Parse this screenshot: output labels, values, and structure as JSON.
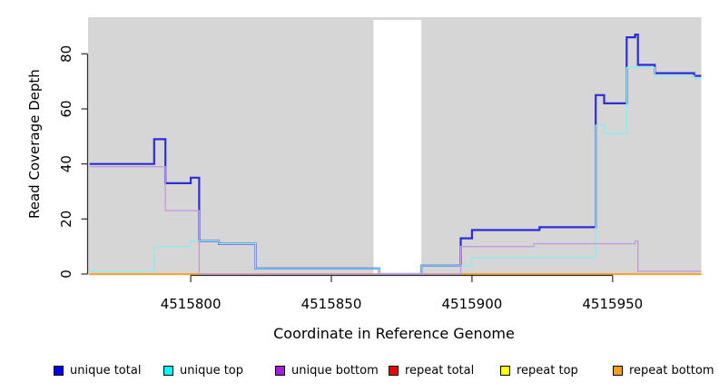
{
  "chart_data": {
    "type": "line",
    "subtype": "step",
    "xlabel": "Coordinate in Reference Genome",
    "ylabel": "Read Coverage Depth",
    "x_ticks": [
      4515800,
      4515850,
      4515900,
      4515950
    ],
    "y_ticks": [
      0,
      20,
      40,
      60,
      80
    ],
    "x_range": [
      4515764,
      4515982
    ],
    "y_range": [
      0,
      93
    ],
    "grid": false,
    "plot_bg": "#d6d6d6",
    "masked_region": {
      "x_start": 4515865,
      "x_end": 4515882,
      "color": "#ffffff"
    },
    "legend_position": "bottom",
    "draw_order": [
      "unique total",
      "repeat total",
      "repeat top",
      "repeat bottom",
      "unique top",
      "unique bottom"
    ],
    "series": [
      {
        "name": "unique total",
        "swatch_color": "#0000ee",
        "line_color": "#2d2dd6",
        "line_width": 2.2,
        "points": [
          [
            4515764,
            40
          ],
          [
            4515787,
            49
          ],
          [
            4515791,
            33
          ],
          [
            4515800,
            35
          ],
          [
            4515803,
            12
          ],
          [
            4515810,
            11
          ],
          [
            4515823,
            2
          ],
          [
            4515867,
            0
          ],
          [
            4515882,
            3
          ],
          [
            4515896,
            13
          ],
          [
            4515900,
            16
          ],
          [
            4515924,
            17
          ],
          [
            4515944,
            65
          ],
          [
            4515947,
            62
          ],
          [
            4515955,
            86
          ],
          [
            4515958,
            87
          ],
          [
            4515959,
            76
          ],
          [
            4515965,
            73
          ],
          [
            4515979,
            72
          ]
        ]
      },
      {
        "name": "unique top",
        "swatch_color": "#00ffff",
        "line_color": "#8fe9f0",
        "line_width": 1.4,
        "points": [
          [
            4515764,
            1
          ],
          [
            4515787,
            10
          ],
          [
            4515800,
            12
          ],
          [
            4515810,
            11
          ],
          [
            4515823,
            2
          ],
          [
            4515867,
            0
          ],
          [
            4515882,
            3
          ],
          [
            4515900,
            6
          ],
          [
            4515944,
            54
          ],
          [
            4515947,
            51
          ],
          [
            4515955,
            75
          ],
          [
            4515965,
            72
          ],
          [
            4515979,
            71
          ]
        ]
      },
      {
        "name": "unique bottom",
        "swatch_color": "#a11fd4",
        "line_color": "#c49ae2",
        "line_width": 1.4,
        "points": [
          [
            4515764,
            39
          ],
          [
            4515791,
            23
          ],
          [
            4515803,
            0
          ],
          [
            4515896,
            10
          ],
          [
            4515922,
            11
          ],
          [
            4515958,
            12
          ],
          [
            4515959,
            1
          ]
        ]
      },
      {
        "name": "repeat total",
        "swatch_color": "#ee0000",
        "line_color": "#e04848",
        "line_width": 1.4,
        "points": [
          [
            4515764,
            0
          ]
        ]
      },
      {
        "name": "repeat top",
        "swatch_color": "#ffff00",
        "line_color": "#ffe800",
        "line_width": 1.4,
        "points": [
          [
            4515764,
            0
          ]
        ]
      },
      {
        "name": "repeat bottom",
        "swatch_color": "#ff9d1e",
        "line_color": "#ff9d1e",
        "line_width": 1.6,
        "points": [
          [
            4515764,
            0
          ]
        ]
      }
    ]
  },
  "legend": {
    "items": [
      {
        "label": "unique total"
      },
      {
        "label": "unique top"
      },
      {
        "label": "unique bottom"
      },
      {
        "label": "repeat total"
      },
      {
        "label": "repeat top"
      },
      {
        "label": "repeat bottom"
      }
    ]
  }
}
